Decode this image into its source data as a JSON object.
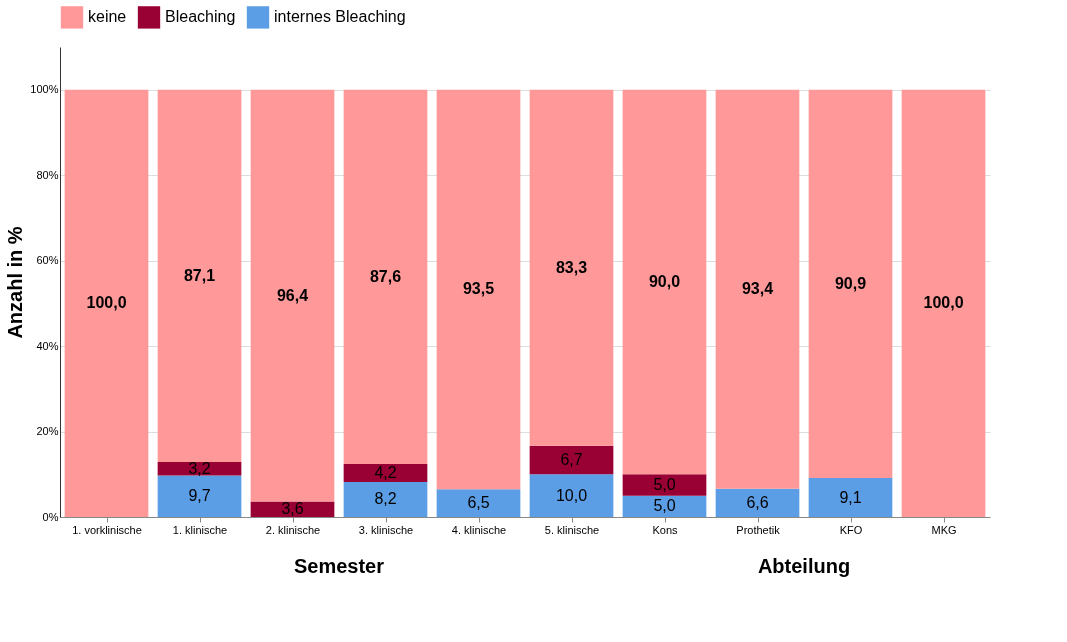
{
  "chart_data": {
    "type": "bar",
    "stacked": true,
    "ylabel": "Anzahl in %",
    "categories": [
      "1. vorklinische",
      "1. klinische",
      "2. klinische",
      "3. klinische",
      "4. klinische",
      "5. klinische",
      "Kons",
      "Prothetik",
      "KFO",
      "MKG"
    ],
    "series": [
      {
        "name": "internes Bleaching",
        "color": "#5b9ee6",
        "values": [
          null,
          9.7,
          null,
          8.2,
          6.5,
          10.0,
          5.0,
          6.6,
          9.1,
          null
        ],
        "value_labels": [
          null,
          "9,7",
          null,
          "8,2",
          "6,5",
          "10,0",
          "5,0",
          "6,6",
          "9,1",
          null
        ]
      },
      {
        "name": "Bleaching",
        "color": "#990033",
        "values": [
          null,
          3.2,
          3.6,
          4.2,
          null,
          6.7,
          5.0,
          null,
          null,
          null
        ],
        "value_labels": [
          null,
          "3,2",
          "3,6",
          "4,2",
          null,
          "6,7",
          "5,0",
          null,
          null,
          null
        ]
      },
      {
        "name": "keine",
        "color": "#ff9999",
        "values": [
          100.0,
          87.1,
          96.4,
          87.6,
          93.5,
          83.3,
          90.0,
          93.4,
          90.9,
          100.0
        ],
        "value_labels": [
          "100,0",
          "87,1",
          "96,4",
          "87,6",
          "93,5",
          "83,3",
          "90,0",
          "93,4",
          "90,9",
          "100,0"
        ]
      }
    ],
    "ylim": [
      0,
      110
    ],
    "yticks": [
      {
        "value": 0,
        "label": "0%"
      },
      {
        "value": 20,
        "label": "20%"
      },
      {
        "value": 40,
        "label": "40%"
      },
      {
        "value": 60,
        "label": "60%"
      },
      {
        "value": 80,
        "label": "80%"
      },
      {
        "value": 100,
        "label": "100%"
      }
    ],
    "grid": "y",
    "legend": "top",
    "annotations": [
      "Semester",
      "Abteilung"
    ]
  }
}
